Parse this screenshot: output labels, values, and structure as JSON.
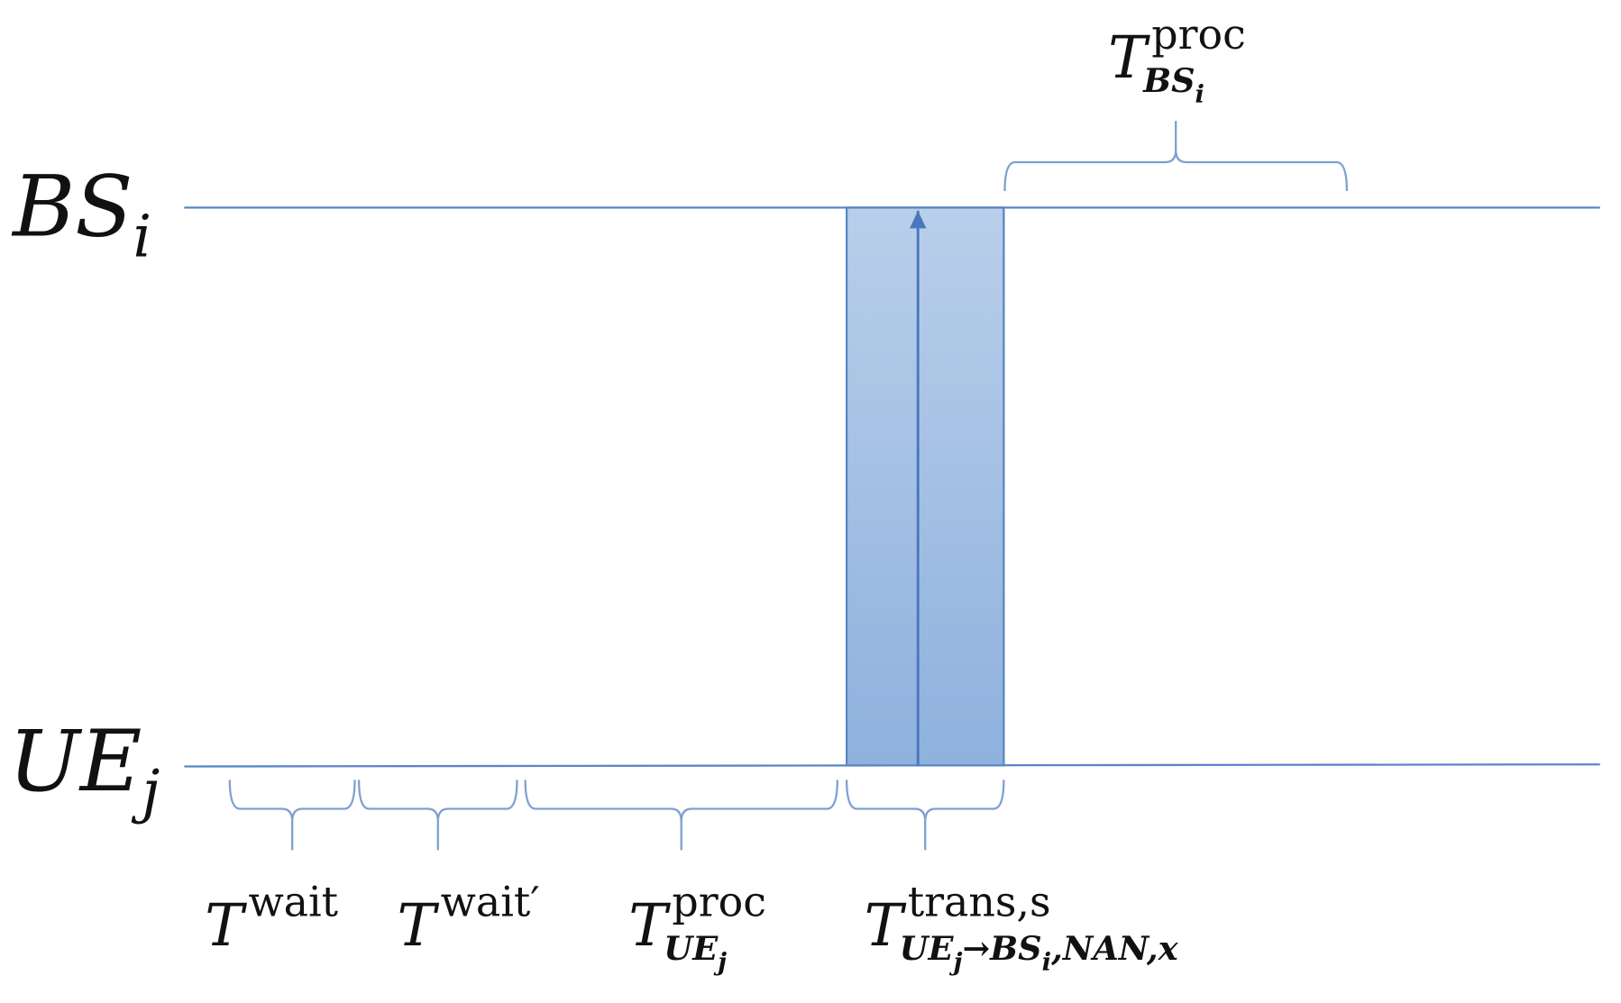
{
  "lanes": [
    {
      "name": "BS",
      "sub": "i"
    },
    {
      "name": "UE",
      "sub": "j"
    }
  ],
  "intervals": [
    {
      "symbol": "T",
      "sup": "wait"
    },
    {
      "symbol": "T",
      "sup": "wait′"
    },
    {
      "symbol": "T",
      "sup": "proc",
      "sub": [
        "UE",
        "j"
      ]
    },
    {
      "symbol": "T",
      "sup": "trans,s",
      "sub": [
        "UE",
        "j",
        "→BS",
        "i",
        ",NAN,x"
      ]
    },
    {
      "symbol": "T",
      "sup": "proc",
      "sub": [
        "BS",
        "i"
      ]
    }
  ]
}
